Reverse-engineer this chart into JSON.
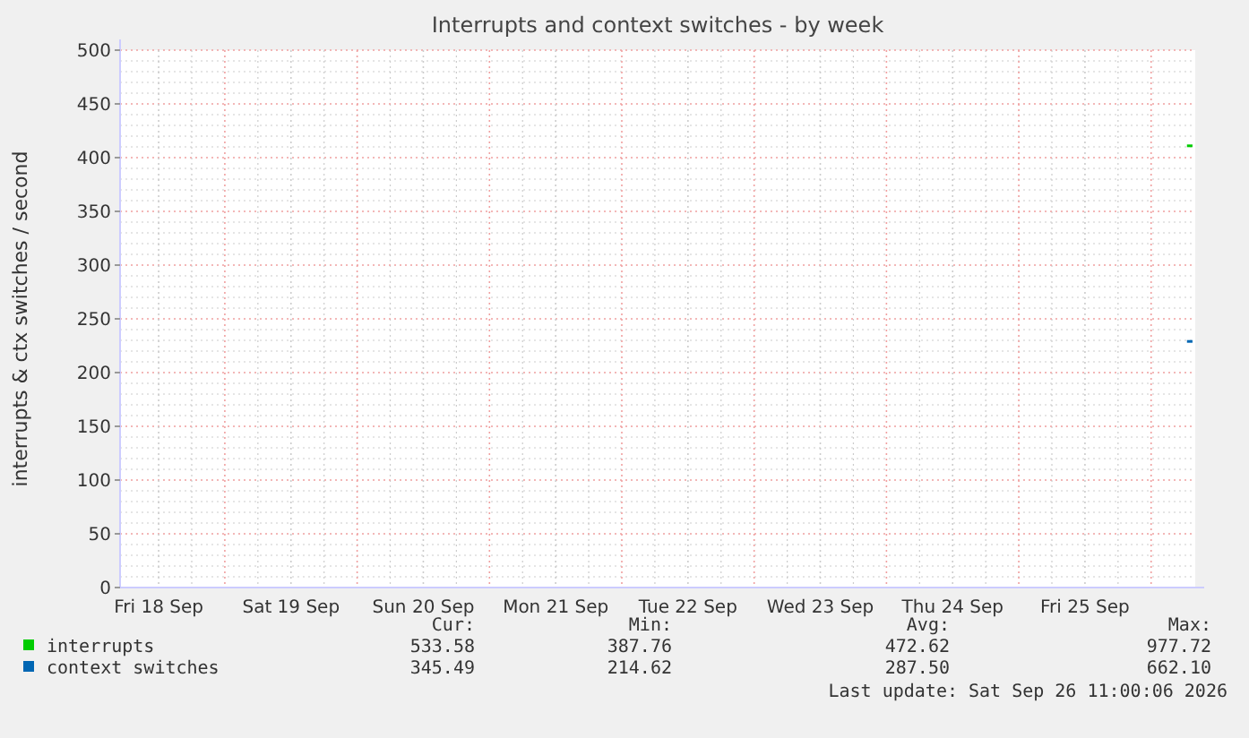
{
  "chart_data": {
    "type": "line",
    "title": "Interrupts and context switches - by week",
    "ylabel": "interrupts & ctx switches / second",
    "xlim": [
      "2026-09-18T05:00",
      "2026-09-26T08:00"
    ],
    "xticks": [
      {
        "value": "2026-09-18T12:00",
        "label": "Fri 18 Sep"
      },
      {
        "value": "2026-09-19T00:00",
        "label": null
      },
      {
        "value": "2026-09-19T12:00",
        "label": "Sat 19 Sep"
      },
      {
        "value": "2026-09-20T00:00",
        "label": null
      },
      {
        "value": "2026-09-20T12:00",
        "label": "Sun 20 Sep"
      },
      {
        "value": "2026-09-21T00:00",
        "label": null
      },
      {
        "value": "2026-09-21T12:00",
        "label": "Mon 21 Sep"
      },
      {
        "value": "2026-09-22T00:00",
        "label": null
      },
      {
        "value": "2026-09-22T12:00",
        "label": "Tue 22 Sep"
      },
      {
        "value": "2026-09-23T00:00",
        "label": null
      },
      {
        "value": "2026-09-23T12:00",
        "label": "Wed 23 Sep"
      },
      {
        "value": "2026-09-24T00:00",
        "label": null
      },
      {
        "value": "2026-09-24T12:00",
        "label": "Thu 24 Sep"
      },
      {
        "value": "2026-09-25T00:00",
        "label": null
      },
      {
        "value": "2026-09-25T12:00",
        "label": "Fri 25 Sep"
      },
      {
        "value": "2026-09-26T00:00",
        "label": null
      }
    ],
    "ylim": [
      0,
      500
    ],
    "yticks": [
      0,
      50,
      100,
      150,
      200,
      250,
      300,
      350,
      400,
      450,
      500
    ],
    "grid": true,
    "legend": "bottom",
    "marker": "none",
    "x": [
      "2026-09-26T06:30",
      "2026-09-26T07:30"
    ],
    "series": [
      {
        "name": "interrupts",
        "color": "#00cc00",
        "values": [
          411,
          411
        ]
      },
      {
        "name": "context switches",
        "color": "#0066b3",
        "values": [
          229,
          229
        ]
      }
    ],
    "annotations": [
      "Cur:",
      "Min:",
      "Avg:",
      "Max:",
      "533.58",
      "387.76",
      "472.62",
      "977.72",
      "345.49",
      "214.62",
      "287.50",
      "662.10",
      "Last update: Sat Sep 26 11:00:06 2026"
    ]
  }
}
